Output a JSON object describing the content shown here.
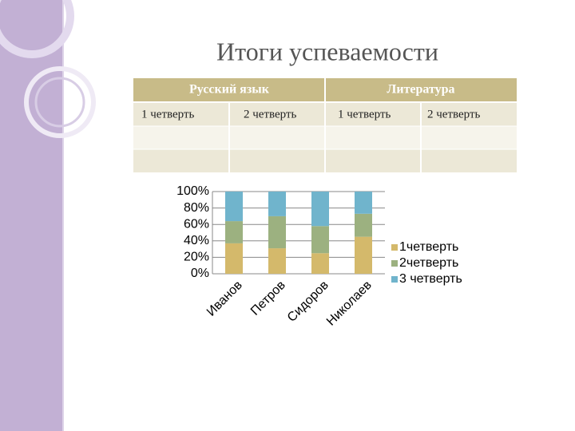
{
  "title": "Итоги успеваемости",
  "table": {
    "header": [
      "Русский  язык",
      "Литература"
    ],
    "subheader": [
      "1 четверть",
      "2 четверть",
      "1 четверть",
      "2 четверть"
    ]
  },
  "chart_data": {
    "type": "stacked_bar",
    "categories": [
      "Иванов",
      "Петров",
      "Сидоров",
      "Николаев"
    ],
    "series": [
      {
        "name": "1четверть",
        "color": "#d4b96b",
        "values": [
          37,
          31,
          25,
          45
        ]
      },
      {
        "name": "2четверть",
        "color": "#9cb180",
        "values": [
          27,
          39,
          33,
          28
        ]
      },
      {
        "name": "3 четверть",
        "color": "#70b4cc",
        "values": [
          36,
          30,
          42,
          27
        ]
      }
    ],
    "ylim": [
      0,
      100
    ],
    "yticks": [
      {
        "value": 0,
        "label": "0%"
      },
      {
        "value": 20,
        "label": "20%"
      },
      {
        "value": 40,
        "label": "40%"
      },
      {
        "value": 60,
        "label": "60%"
      },
      {
        "value": 80,
        "label": "80%"
      },
      {
        "value": 100,
        "label": "100%"
      }
    ],
    "grid": true,
    "legend": "right"
  }
}
